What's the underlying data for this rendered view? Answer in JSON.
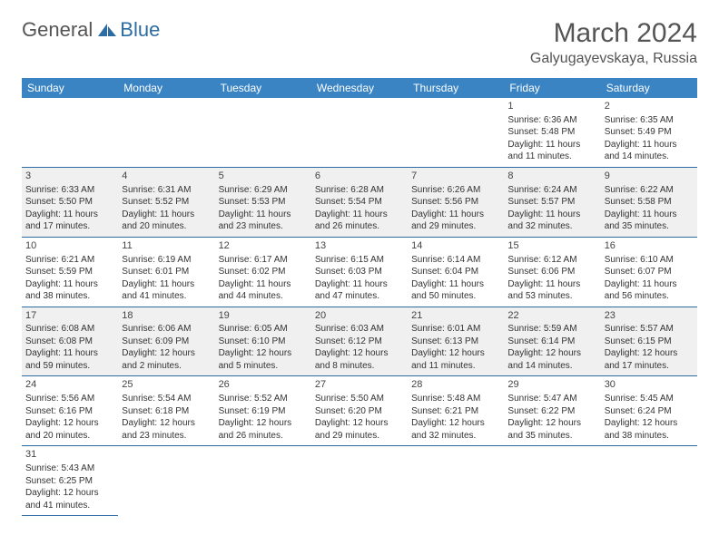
{
  "logo": {
    "part1": "General",
    "part2": "Blue"
  },
  "title": "March 2024",
  "location": "Galyugayevskaya, Russia",
  "colors": {
    "header_bg": "#3a84c4",
    "header_text": "#ffffff",
    "border": "#2d6ca2",
    "row_shade": "#f0f0f0",
    "text": "#333333",
    "logo_gray": "#555555",
    "logo_blue": "#2d6ca2"
  },
  "weekdays": [
    "Sunday",
    "Monday",
    "Tuesday",
    "Wednesday",
    "Thursday",
    "Friday",
    "Saturday"
  ],
  "weeks": [
    [
      null,
      null,
      null,
      null,
      null,
      {
        "n": "1",
        "sr": "Sunrise: 6:36 AM",
        "ss": "Sunset: 5:48 PM",
        "d1": "Daylight: 11 hours",
        "d2": "and 11 minutes."
      },
      {
        "n": "2",
        "sr": "Sunrise: 6:35 AM",
        "ss": "Sunset: 5:49 PM",
        "d1": "Daylight: 11 hours",
        "d2": "and 14 minutes."
      }
    ],
    [
      {
        "n": "3",
        "sr": "Sunrise: 6:33 AM",
        "ss": "Sunset: 5:50 PM",
        "d1": "Daylight: 11 hours",
        "d2": "and 17 minutes."
      },
      {
        "n": "4",
        "sr": "Sunrise: 6:31 AM",
        "ss": "Sunset: 5:52 PM",
        "d1": "Daylight: 11 hours",
        "d2": "and 20 minutes."
      },
      {
        "n": "5",
        "sr": "Sunrise: 6:29 AM",
        "ss": "Sunset: 5:53 PM",
        "d1": "Daylight: 11 hours",
        "d2": "and 23 minutes."
      },
      {
        "n": "6",
        "sr": "Sunrise: 6:28 AM",
        "ss": "Sunset: 5:54 PM",
        "d1": "Daylight: 11 hours",
        "d2": "and 26 minutes."
      },
      {
        "n": "7",
        "sr": "Sunrise: 6:26 AM",
        "ss": "Sunset: 5:56 PM",
        "d1": "Daylight: 11 hours",
        "d2": "and 29 minutes."
      },
      {
        "n": "8",
        "sr": "Sunrise: 6:24 AM",
        "ss": "Sunset: 5:57 PM",
        "d1": "Daylight: 11 hours",
        "d2": "and 32 minutes."
      },
      {
        "n": "9",
        "sr": "Sunrise: 6:22 AM",
        "ss": "Sunset: 5:58 PM",
        "d1": "Daylight: 11 hours",
        "d2": "and 35 minutes."
      }
    ],
    [
      {
        "n": "10",
        "sr": "Sunrise: 6:21 AM",
        "ss": "Sunset: 5:59 PM",
        "d1": "Daylight: 11 hours",
        "d2": "and 38 minutes."
      },
      {
        "n": "11",
        "sr": "Sunrise: 6:19 AM",
        "ss": "Sunset: 6:01 PM",
        "d1": "Daylight: 11 hours",
        "d2": "and 41 minutes."
      },
      {
        "n": "12",
        "sr": "Sunrise: 6:17 AM",
        "ss": "Sunset: 6:02 PM",
        "d1": "Daylight: 11 hours",
        "d2": "and 44 minutes."
      },
      {
        "n": "13",
        "sr": "Sunrise: 6:15 AM",
        "ss": "Sunset: 6:03 PM",
        "d1": "Daylight: 11 hours",
        "d2": "and 47 minutes."
      },
      {
        "n": "14",
        "sr": "Sunrise: 6:14 AM",
        "ss": "Sunset: 6:04 PM",
        "d1": "Daylight: 11 hours",
        "d2": "and 50 minutes."
      },
      {
        "n": "15",
        "sr": "Sunrise: 6:12 AM",
        "ss": "Sunset: 6:06 PM",
        "d1": "Daylight: 11 hours",
        "d2": "and 53 minutes."
      },
      {
        "n": "16",
        "sr": "Sunrise: 6:10 AM",
        "ss": "Sunset: 6:07 PM",
        "d1": "Daylight: 11 hours",
        "d2": "and 56 minutes."
      }
    ],
    [
      {
        "n": "17",
        "sr": "Sunrise: 6:08 AM",
        "ss": "Sunset: 6:08 PM",
        "d1": "Daylight: 11 hours",
        "d2": "and 59 minutes."
      },
      {
        "n": "18",
        "sr": "Sunrise: 6:06 AM",
        "ss": "Sunset: 6:09 PM",
        "d1": "Daylight: 12 hours",
        "d2": "and 2 minutes."
      },
      {
        "n": "19",
        "sr": "Sunrise: 6:05 AM",
        "ss": "Sunset: 6:10 PM",
        "d1": "Daylight: 12 hours",
        "d2": "and 5 minutes."
      },
      {
        "n": "20",
        "sr": "Sunrise: 6:03 AM",
        "ss": "Sunset: 6:12 PM",
        "d1": "Daylight: 12 hours",
        "d2": "and 8 minutes."
      },
      {
        "n": "21",
        "sr": "Sunrise: 6:01 AM",
        "ss": "Sunset: 6:13 PM",
        "d1": "Daylight: 12 hours",
        "d2": "and 11 minutes."
      },
      {
        "n": "22",
        "sr": "Sunrise: 5:59 AM",
        "ss": "Sunset: 6:14 PM",
        "d1": "Daylight: 12 hours",
        "d2": "and 14 minutes."
      },
      {
        "n": "23",
        "sr": "Sunrise: 5:57 AM",
        "ss": "Sunset: 6:15 PM",
        "d1": "Daylight: 12 hours",
        "d2": "and 17 minutes."
      }
    ],
    [
      {
        "n": "24",
        "sr": "Sunrise: 5:56 AM",
        "ss": "Sunset: 6:16 PM",
        "d1": "Daylight: 12 hours",
        "d2": "and 20 minutes."
      },
      {
        "n": "25",
        "sr": "Sunrise: 5:54 AM",
        "ss": "Sunset: 6:18 PM",
        "d1": "Daylight: 12 hours",
        "d2": "and 23 minutes."
      },
      {
        "n": "26",
        "sr": "Sunrise: 5:52 AM",
        "ss": "Sunset: 6:19 PM",
        "d1": "Daylight: 12 hours",
        "d2": "and 26 minutes."
      },
      {
        "n": "27",
        "sr": "Sunrise: 5:50 AM",
        "ss": "Sunset: 6:20 PM",
        "d1": "Daylight: 12 hours",
        "d2": "and 29 minutes."
      },
      {
        "n": "28",
        "sr": "Sunrise: 5:48 AM",
        "ss": "Sunset: 6:21 PM",
        "d1": "Daylight: 12 hours",
        "d2": "and 32 minutes."
      },
      {
        "n": "29",
        "sr": "Sunrise: 5:47 AM",
        "ss": "Sunset: 6:22 PM",
        "d1": "Daylight: 12 hours",
        "d2": "and 35 minutes."
      },
      {
        "n": "30",
        "sr": "Sunrise: 5:45 AM",
        "ss": "Sunset: 6:24 PM",
        "d1": "Daylight: 12 hours",
        "d2": "and 38 minutes."
      }
    ],
    [
      {
        "n": "31",
        "sr": "Sunrise: 5:43 AM",
        "ss": "Sunset: 6:25 PM",
        "d1": "Daylight: 12 hours",
        "d2": "and 41 minutes."
      },
      null,
      null,
      null,
      null,
      null,
      null
    ]
  ]
}
